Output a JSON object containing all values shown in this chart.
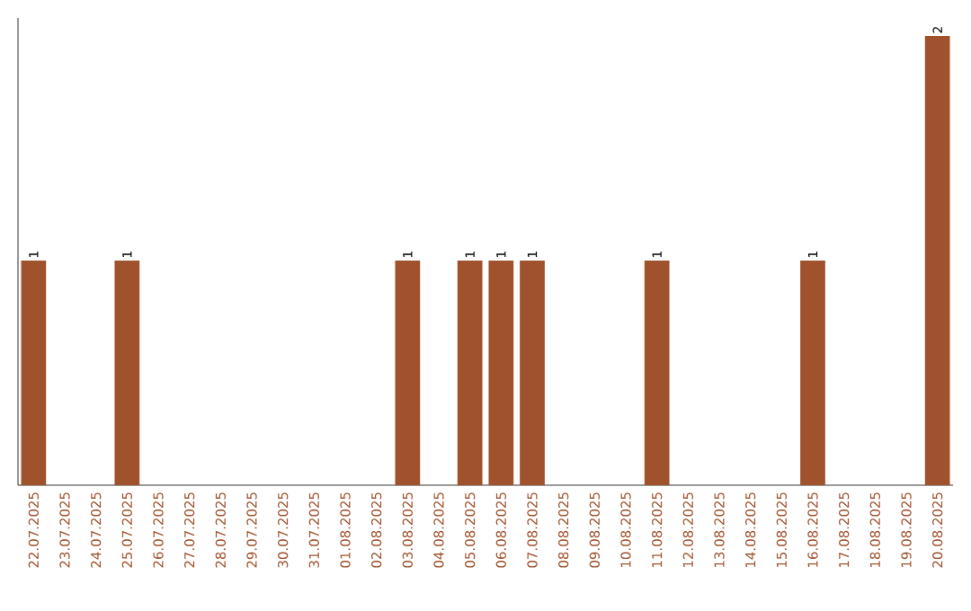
{
  "chart_data": {
    "type": "bar",
    "color": "#a0522d",
    "categories": [
      "22.07.2025",
      "23.07.2025",
      "24.07.2025",
      "25.07.2025",
      "26.07.2025",
      "27.07.2025",
      "28.07.2025",
      "29.07.2025",
      "30.07.2025",
      "31.07.2025",
      "01.08.2025",
      "02.08.2025",
      "03.08.2025",
      "04.08.2025",
      "05.08.2025",
      "06.08.2025",
      "07.08.2025",
      "08.08.2025",
      "09.08.2025",
      "10.08.2025",
      "11.08.2025",
      "12.08.2025",
      "13.08.2025",
      "14.08.2025",
      "15.08.2025",
      "16.08.2025",
      "17.08.2025",
      "18.08.2025",
      "19.08.2025",
      "20.08.2025"
    ],
    "values": [
      1,
      0,
      0,
      1,
      0,
      0,
      0,
      0,
      0,
      0,
      0,
      0,
      1,
      0,
      1,
      1,
      1,
      0,
      0,
      0,
      1,
      0,
      0,
      0,
      0,
      1,
      0,
      0,
      0,
      2
    ],
    "value_labels": [
      "1",
      null,
      null,
      "1",
      null,
      null,
      null,
      null,
      null,
      null,
      null,
      null,
      "1",
      null,
      "1",
      "1",
      "1",
      null,
      null,
      null,
      "1",
      null,
      null,
      null,
      null,
      "1",
      null,
      null,
      null,
      "2"
    ],
    "tick_labels": "x"
  }
}
